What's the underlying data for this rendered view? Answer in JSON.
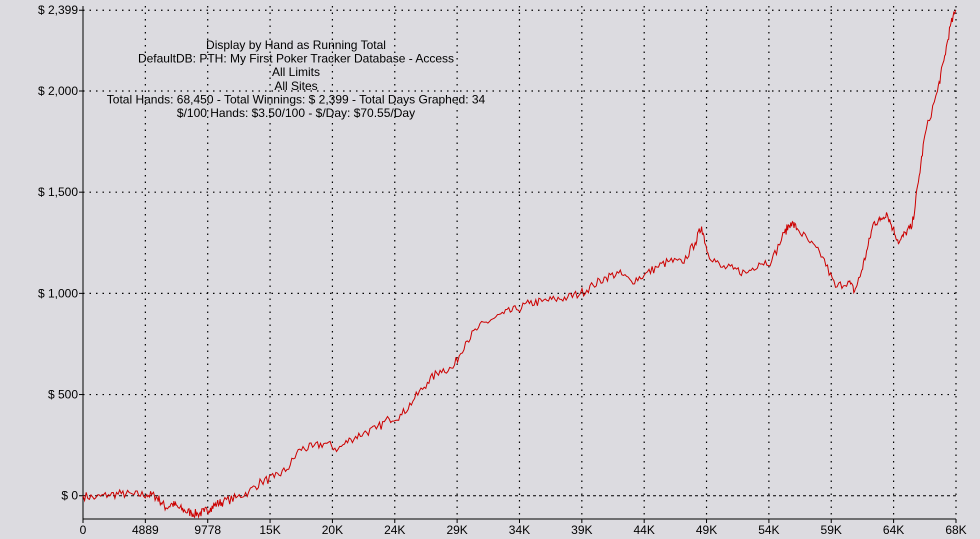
{
  "chart_data": {
    "type": "line",
    "title_lines": [
      "Display by Hand as Running Total",
      "DefaultDB: PTH: My First Poker Tracker Database - Access",
      "All Limits",
      "All Sites",
      "Total Hands: 68,450 - Total Winnings: $ 2,399 - Total Days Graphed: 34",
      "$/100 Hands: $3.50/100 - $/Day: $70.55/Day"
    ],
    "xlabel": "",
    "ylabel": "",
    "xlim": [
      0,
      68450
    ],
    "ylim": [
      -115,
      2420
    ],
    "grid": true,
    "y_ticks": [
      {
        "value": 2399,
        "label": "$ 2,399"
      },
      {
        "value": 2000,
        "label": "$ 2,000"
      },
      {
        "value": 1500,
        "label": "$ 1,500"
      },
      {
        "value": 1000,
        "label": "$ 1,000"
      },
      {
        "value": 500,
        "label": "$ 500"
      },
      {
        "value": 0,
        "label": "$ 0"
      }
    ],
    "x_ticks": [
      {
        "value": 0,
        "label": "0"
      },
      {
        "value": 4889,
        "label": "4889"
      },
      {
        "value": 9778,
        "label": "9778"
      },
      {
        "value": 14667,
        "label": "15K"
      },
      {
        "value": 19556,
        "label": "20K"
      },
      {
        "value": 24445,
        "label": "24K"
      },
      {
        "value": 29334,
        "label": "29K"
      },
      {
        "value": 34223,
        "label": "34K"
      },
      {
        "value": 39112,
        "label": "39K"
      },
      {
        "value": 44001,
        "label": "44K"
      },
      {
        "value": 48890,
        "label": "49K"
      },
      {
        "value": 53779,
        "label": "54K"
      },
      {
        "value": 58668,
        "label": "59K"
      },
      {
        "value": 63557,
        "label": "64K"
      },
      {
        "value": 68450,
        "label": "68K"
      }
    ],
    "series": [
      {
        "color": "#cc0000",
        "x": [
          0,
          1000,
          2000,
          3000,
          4000,
          5000,
          5600,
          6000,
          6500,
          7000,
          7500,
          8000,
          8500,
          9000,
          9500,
          10000,
          10500,
          11000,
          12000,
          13000,
          14000,
          15000,
          16000,
          17000,
          18000,
          19000,
          20000,
          21000,
          22000,
          23000,
          24000,
          25000,
          26000,
          27000,
          28000,
          29000,
          30000,
          31000,
          32000,
          33000,
          34000,
          35000,
          36000,
          37000,
          38000,
          39000,
          40000,
          41000,
          42000,
          43000,
          44000,
          45000,
          46000,
          47000,
          48000,
          48500,
          49000,
          50000,
          51000,
          52000,
          53000,
          54000,
          55000,
          55500,
          56000,
          57000,
          58000,
          59000,
          60000,
          60500,
          61000,
          61500,
          62000,
          62500,
          63000,
          63500,
          64000,
          64500,
          65000,
          65500,
          66000,
          67000,
          67500,
          68000,
          68450
        ],
        "values": [
          0,
          -10,
          5,
          10,
          5,
          5,
          0,
          -20,
          -60,
          -40,
          -60,
          -75,
          -85,
          -90,
          -80,
          -60,
          -40,
          -30,
          -10,
          20,
          70,
          90,
          130,
          230,
          240,
          260,
          230,
          280,
          310,
          330,
          380,
          400,
          480,
          560,
          620,
          630,
          760,
          830,
          870,
          900,
          920,
          950,
          960,
          970,
          980,
          1000,
          1040,
          1080,
          1100,
          1060,
          1090,
          1130,
          1160,
          1150,
          1250,
          1330,
          1200,
          1130,
          1120,
          1100,
          1150,
          1160,
          1300,
          1350,
          1320,
          1250,
          1180,
          1030,
          1060,
          1010,
          1100,
          1220,
          1350,
          1360,
          1400,
          1320,
          1250,
          1300,
          1330,
          1550,
          1780,
          2000,
          2150,
          2320,
          2399
        ]
      }
    ]
  }
}
